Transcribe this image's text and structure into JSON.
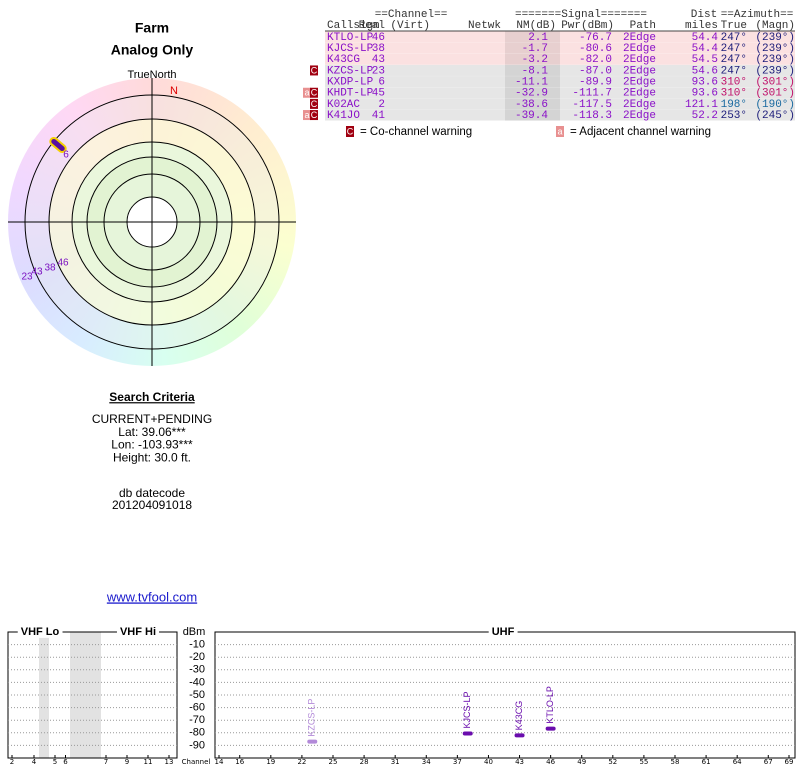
{
  "header": {
    "title": "Farm",
    "subtitle": "Analog Only"
  },
  "polar": {
    "north_label": "TrueNorth",
    "magnetic_label": "N",
    "labels": [
      "6",
      "23",
      "43",
      "38",
      "46"
    ]
  },
  "table": {
    "group_headers": [
      "==Channel==",
      "=======Signal=======",
      "Dist",
      "==Azimuth=="
    ],
    "columns": [
      "Callsign",
      "Real",
      "(Virt)",
      "Netwk",
      "NM(dB)",
      "Pwr(dBm)",
      "Path",
      "miles",
      "True",
      "(Magn)"
    ],
    "rows": [
      {
        "callsign": "KTLO-LP",
        "real": "46",
        "nm": "2.1",
        "pwr": "-76.7",
        "path": "2Edge",
        "dist": "54.4",
        "true_az": "247°",
        "magn_az": "(239°)",
        "background": "#fbe1e1",
        "az_color": "#1c1c7a"
      },
      {
        "callsign": "KJCS-LP",
        "real": "38",
        "nm": "-1.7",
        "pwr": "-80.6",
        "path": "2Edge",
        "dist": "54.4",
        "true_az": "247°",
        "magn_az": "(239°)",
        "background": "#fbe1e1",
        "az_color": "#1c1c7a"
      },
      {
        "callsign": "K43CG",
        "real": "43",
        "nm": "-3.2",
        "pwr": "-82.0",
        "path": "2Edge",
        "dist": "54.5",
        "true_az": "247°",
        "magn_az": "(239°)",
        "background": "#fbe1e1",
        "az_color": "#1c1c7a"
      },
      {
        "callsign": "KZCS-LP",
        "real": "23",
        "nm": "-8.1",
        "pwr": "-87.0",
        "path": "2Edge",
        "dist": "54.6",
        "true_az": "247°",
        "magn_az": "(239°)",
        "background": "#e6e6e6",
        "az_color": "#1c1c7a",
        "warnings": [
          "C"
        ]
      },
      {
        "callsign": "KXDP-LP",
        "real": "6",
        "nm": "-11.1",
        "pwr": "-89.9",
        "path": "2Edge",
        "dist": "93.6",
        "true_az": "310°",
        "magn_az": "(301°)",
        "background": "#e6e6e6",
        "az_color": "#c0106a"
      },
      {
        "callsign": "KHDT-LP",
        "real": "45",
        "nm": "-32.9",
        "pwr": "-111.7",
        "path": "2Edge",
        "dist": "93.6",
        "true_az": "310°",
        "magn_az": "(301°)",
        "background": "#e6e6e6",
        "az_color": "#c0106a",
        "warnings": [
          "a",
          "C"
        ]
      },
      {
        "callsign": "K02AC",
        "real": "2",
        "nm": "-38.6",
        "pwr": "-117.5",
        "path": "2Edge",
        "dist": "121.1",
        "true_az": "198°",
        "magn_az": "(190°)",
        "background": "#e6e6e6",
        "az_color": "#1a6aa0",
        "warnings": [
          "C"
        ]
      },
      {
        "callsign": "K41JO",
        "real": "41",
        "nm": "-39.4",
        "pwr": "-118.3",
        "path": "2Edge",
        "dist": "52.2",
        "true_az": "253°",
        "magn_az": "(245°)",
        "background": "#e6e6e6",
        "az_color": "#1c1c7a",
        "warnings": [
          "a",
          "C"
        ]
      }
    ],
    "legend": [
      {
        "icon": "C",
        "text": "= Co-channel warning"
      },
      {
        "icon": "a",
        "text": "= Adjacent channel warning"
      }
    ]
  },
  "criteria": {
    "title": "Search Criteria",
    "lines": [
      "CURRENT+PENDING",
      "Lat: 39.06***",
      "Lon: -103.93***",
      "Height: 30.0 ft."
    ],
    "db_label": "db datecode",
    "db_value": "201204091018",
    "link": "www.tvfool.com"
  },
  "spectrum": {
    "bands": [
      "VHF Lo",
      "VHF Hi",
      "UHF"
    ],
    "y_label": "dBm",
    "x_label": "Channel",
    "ylim": [
      -100,
      0
    ],
    "yticks": [
      -10,
      -20,
      -30,
      -40,
      -50,
      -60,
      -70,
      -80,
      -90
    ],
    "vhf_ticks": [
      2,
      4,
      5,
      6,
      7,
      9,
      11,
      13
    ],
    "uhf_ticks": [
      14,
      16,
      19,
      22,
      25,
      28,
      31,
      34,
      37,
      40,
      43,
      46,
      49,
      52,
      55,
      58,
      61,
      64,
      67,
      69
    ],
    "stations": [
      {
        "name": "KZCS-LP",
        "channel": 23,
        "value": -87.0,
        "color": "#b38ad9"
      },
      {
        "name": "KJCS-LP",
        "channel": 38,
        "value": -80.6,
        "color": "#6a0dad"
      },
      {
        "name": "K43CG",
        "channel": 43,
        "value": -82.0,
        "color": "#6a0dad"
      },
      {
        "name": "KTLO-LP",
        "channel": 46,
        "value": -76.7,
        "color": "#6a0dad"
      }
    ]
  }
}
